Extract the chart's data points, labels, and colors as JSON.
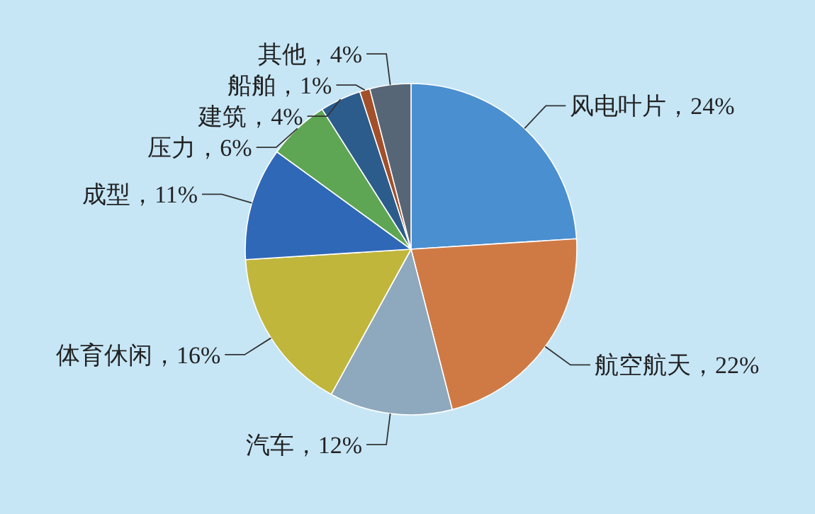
{
  "chart_data": {
    "type": "pie",
    "categories": [
      "风电叶片",
      "航空航天",
      "汽车",
      "体育休闲",
      "成型",
      "压力",
      "建筑",
      "船舶",
      "其他"
    ],
    "values": [
      24,
      22,
      12,
      16,
      11,
      6,
      4,
      1,
      4
    ],
    "value_labels": [
      "24%",
      "22%",
      "12%",
      "16%",
      "11%",
      "6%",
      "4%",
      "1%",
      "4%"
    ],
    "colors": [
      "#4a8fd0",
      "#cf7a45",
      "#8ea8bd",
      "#c0b63c",
      "#3068b8",
      "#5ea654",
      "#2c5c8c",
      "#a24f2a",
      "#566677"
    ]
  }
}
